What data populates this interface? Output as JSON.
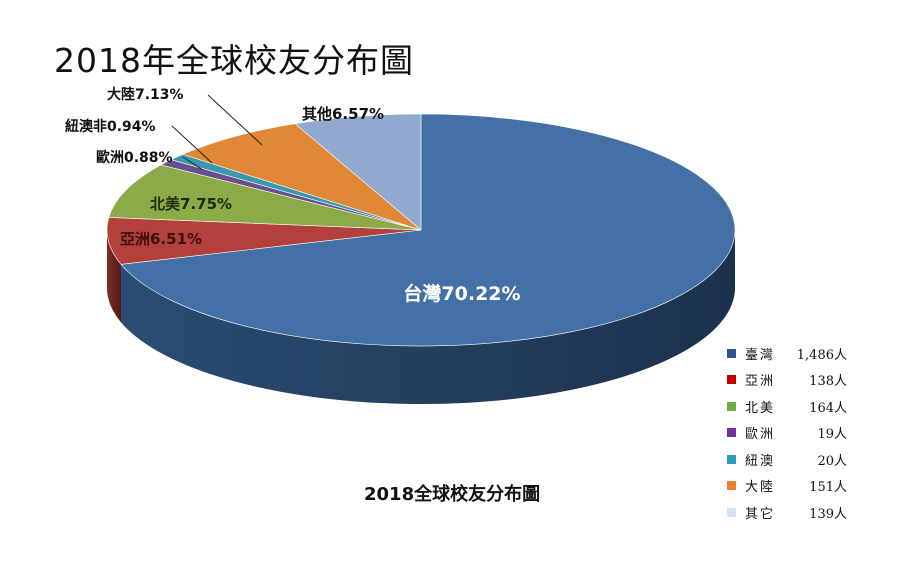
{
  "chart_data": {
    "type": "pie",
    "title": "2018年全球校友分布圖",
    "subtitle": "2018全球校友分布圖",
    "slices": [
      {
        "label": "台灣70.22%",
        "value": 70.22,
        "color": "#4470A8",
        "side": "#2B4C74"
      },
      {
        "label": "亞洲6.51%",
        "value": 6.51,
        "color": "#B3403B",
        "side": "#7E2A26"
      },
      {
        "label": "北美7.75%",
        "value": 7.75,
        "color": "#8BAA48",
        "side": "#5F7830"
      },
      {
        "label": "歐洲0.88%",
        "value": 0.88,
        "color": "#6B4E8E",
        "side": "#4A3565"
      },
      {
        "label": "紐澳非0.94%",
        "value": 0.94,
        "color": "#3A98AE",
        "side": "#286B7B"
      },
      {
        "label": "大陸7.13%",
        "value": 7.13,
        "color": "#E08738",
        "side": "#A65F22"
      },
      {
        "label": "其他6.57%",
        "value": 6.57,
        "color": "#93AAD0",
        "side": "#6C7FA0"
      }
    ],
    "legend": [
      {
        "name": "臺灣",
        "count": "1,486人",
        "color": "#2F5597"
      },
      {
        "name": "亞洲",
        "count": "138人",
        "color": "#C00000"
      },
      {
        "name": "北美",
        "count": "164人",
        "color": "#70AD47"
      },
      {
        "name": "歐洲",
        "count": "19人",
        "color": "#7030A0"
      },
      {
        "name": "紐澳",
        "count": "20人",
        "color": "#2E9CB8"
      },
      {
        "name": "大陸",
        "count": "151人",
        "color": "#ED7D31"
      },
      {
        "name": "其它",
        "count": "139人",
        "color": "#D5E3F5"
      }
    ]
  }
}
